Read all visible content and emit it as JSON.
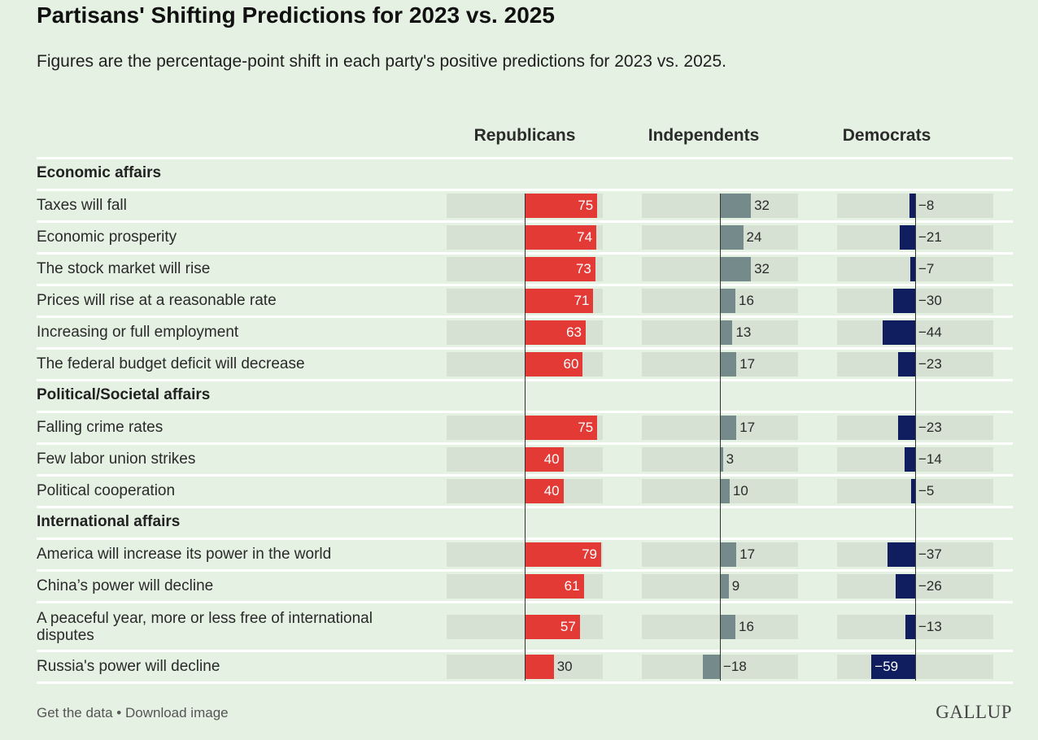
{
  "title": "Partisans' Shifting Predictions for 2023 vs. 2025",
  "subtitle": "Figures are the percentage-point shift in each party's positive predictions for 2023 vs. 2025.",
  "footer": {
    "get_data": "Get the data",
    "separator": " • ",
    "download": "Download image",
    "brand": "GALLUP"
  },
  "colors": {
    "republicans": "#e33a36",
    "independents": "#758a8a",
    "democrats": "#101d5e",
    "track": "#d6e0d3"
  },
  "chart_data": {
    "type": "bar",
    "orientation": "horizontal",
    "series": [
      {
        "name": "Republicans"
      },
      {
        "name": "Independents"
      },
      {
        "name": "Democrats"
      }
    ],
    "sections": [
      {
        "title": "Economic affairs",
        "rows": [
          {
            "label": "Taxes will fall",
            "values": [
              75,
              32,
              -8
            ]
          },
          {
            "label": "Economic prosperity",
            "values": [
              74,
              24,
              -21
            ]
          },
          {
            "label": "The stock market will rise",
            "values": [
              73,
              32,
              -7
            ]
          },
          {
            "label": "Prices will rise at a reasonable rate",
            "values": [
              71,
              16,
              -30
            ]
          },
          {
            "label": "Increasing or full employment",
            "values": [
              63,
              13,
              -44
            ]
          },
          {
            "label": "The federal budget deficit will decrease",
            "values": [
              60,
              17,
              -23
            ]
          }
        ]
      },
      {
        "title": "Political/Societal affairs",
        "rows": [
          {
            "label": "Falling crime rates",
            "values": [
              75,
              17,
              -23
            ]
          },
          {
            "label": "Few labor union strikes",
            "values": [
              40,
              3,
              -14
            ]
          },
          {
            "label": "Political cooperation",
            "values": [
              40,
              10,
              -5
            ]
          }
        ]
      },
      {
        "title": "International affairs",
        "rows": [
          {
            "label": "America will increase its power in the world",
            "values": [
              79,
              17,
              -37
            ]
          },
          {
            "label": "China’s power will decline",
            "values": [
              61,
              9,
              -26
            ]
          },
          {
            "label": "A peaceful year, more or less free of international disputes",
            "values": [
              57,
              16,
              -13
            ]
          },
          {
            "label": "Russia's power will decline",
            "values": [
              30,
              -18,
              -59
            ]
          }
        ]
      }
    ]
  }
}
